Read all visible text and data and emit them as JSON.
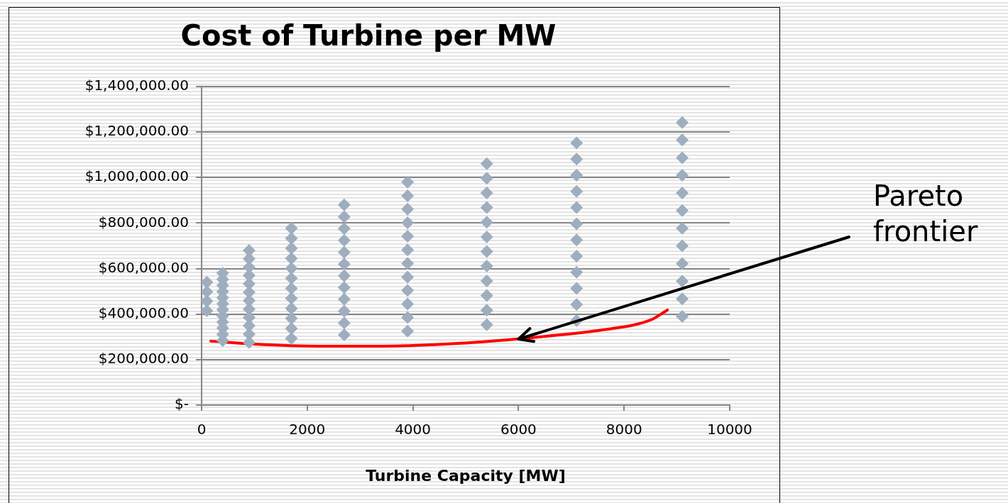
{
  "chart_data": {
    "type": "scatter",
    "title": "Cost of Turbine per MW",
    "xlabel": "Turbine Capacity [MW]",
    "xlim": [
      0,
      10000
    ],
    "xticks": [
      0,
      2000,
      4000,
      6000,
      8000,
      10000
    ],
    "ylim": [
      0,
      1400000
    ],
    "yticks": [
      {
        "value": 0,
        "label": "$-"
      },
      {
        "value": 200000,
        "label": "$200,000.00"
      },
      {
        "value": 400000,
        "label": "$400,000.00"
      },
      {
        "value": 600000,
        "label": "$600,000.00"
      },
      {
        "value": 800000,
        "label": "$800,000.00"
      },
      {
        "value": 1000000,
        "label": "$1,000,000.00"
      },
      {
        "value": 1200000,
        "label": "$1,200,000.00"
      },
      {
        "value": 1400000,
        "label": "$1,400,000.00"
      }
    ],
    "grid": "y",
    "legend": false,
    "marker": "diamond",
    "annotations": [
      {
        "text": "Pareto frontier",
        "x": 6000,
        "y": 290000
      }
    ],
    "series": [
      {
        "color": "#9eaebf",
        "x": [
          100,
          100,
          100,
          100,
          400,
          400,
          400,
          400,
          400,
          400,
          400,
          400,
          400,
          400,
          400,
          400,
          900,
          900,
          900,
          900,
          900,
          900,
          900,
          900,
          900,
          900,
          900,
          900,
          1700,
          1700,
          1700,
          1700,
          1700,
          1700,
          1700,
          1700,
          1700,
          1700,
          1700,
          1700,
          2700,
          2700,
          2700,
          2700,
          2700,
          2700,
          2700,
          2700,
          2700,
          2700,
          2700,
          2700,
          3900,
          3900,
          3900,
          3900,
          3900,
          3900,
          3900,
          3900,
          3900,
          3900,
          3900,
          3900,
          5400,
          5400,
          5400,
          5400,
          5400,
          5400,
          5400,
          5400,
          5400,
          5400,
          5400,
          5400,
          7100,
          7100,
          7100,
          7100,
          7100,
          7100,
          7100,
          7100,
          7100,
          7100,
          7100,
          7100,
          9100,
          9100,
          9100,
          9100,
          9100,
          9100,
          9100,
          9100,
          9100,
          9100,
          9100,
          9100
        ],
        "values": [
          415000,
          457000,
          498000,
          540000,
          284000,
          311000,
          338000,
          365000,
          392000,
          419000,
          445000,
          472000,
          499000,
          526000,
          553000,
          580000,
          275000,
          312000,
          349000,
          385000,
          422000,
          459000,
          496000,
          533000,
          570000,
          606000,
          643000,
          680000,
          293000,
          337000,
          381000,
          425000,
          469000,
          513000,
          557000,
          601000,
          645000,
          689000,
          733000,
          777000,
          309000,
          361000,
          413000,
          465000,
          517000,
          568000,
          620000,
          672000,
          724000,
          776000,
          828000,
          880000,
          325000,
          385000,
          444000,
          504000,
          563000,
          623000,
          682000,
          742000,
          801000,
          861000,
          920000,
          980000,
          353000,
          417000,
          482000,
          546000,
          611000,
          675000,
          739000,
          804000,
          868000,
          932000,
          997000,
          1061000,
          371000,
          442000,
          513000,
          584000,
          655000,
          726000,
          797000,
          868000,
          939000,
          1010000,
          1081000,
          1152000,
          390000,
          467000,
          545000,
          622000,
          700000,
          777000,
          855000,
          932000,
          1010000,
          1087000,
          1165000,
          1242000
        ]
      },
      {
        "type": "line",
        "color": "#ff0000",
        "marker": "none",
        "x": [
          175,
          1000,
          2220,
          3410,
          4610,
          5800,
          6410,
          7610,
          8510,
          8820
        ],
        "values": [
          281000,
          268000,
          259000,
          259000,
          268000,
          287000,
          300000,
          331000,
          375000,
          418000
        ]
      }
    ]
  }
}
